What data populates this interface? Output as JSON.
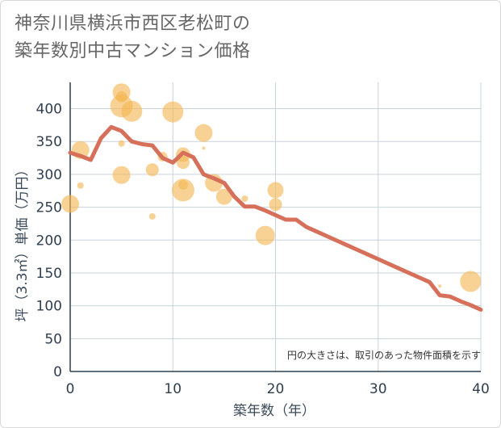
{
  "title_line1": "神奈川県横浜市西区老松町の",
  "title_line2": "築年数別中古マンション価格",
  "chart_data": {
    "type": "scatter",
    "xlabel": "築年数（年）",
    "ylabel": "坪（3.3㎡）単価（万円）",
    "note": "円の大きさは、取引のあった物件面積を示す",
    "xlim": [
      0,
      40
    ],
    "ylim": [
      0,
      440
    ],
    "x_ticks": [
      0,
      10,
      20,
      30,
      40
    ],
    "y_ticks": [
      0,
      50,
      100,
      150,
      200,
      250,
      300,
      350,
      400
    ],
    "grid": true,
    "colors": {
      "bubble": "#f3b752",
      "line": "#d6705a",
      "grid": "#c9d3dc",
      "axis": "#2f3e4f"
    },
    "points": [
      {
        "x": 0,
        "y": 255,
        "size": 11
      },
      {
        "x": 1,
        "y": 337,
        "size": 11
      },
      {
        "x": 1,
        "y": 283,
        "size": 4
      },
      {
        "x": 5,
        "y": 425,
        "size": 11
      },
      {
        "x": 5,
        "y": 418,
        "size": 7
      },
      {
        "x": 5,
        "y": 404,
        "size": 14
      },
      {
        "x": 5,
        "y": 347,
        "size": 4
      },
      {
        "x": 5,
        "y": 299,
        "size": 11
      },
      {
        "x": 6,
        "y": 396,
        "size": 13
      },
      {
        "x": 8,
        "y": 307,
        "size": 8
      },
      {
        "x": 8,
        "y": 236,
        "size": 4
      },
      {
        "x": 9,
        "y": 327,
        "size": 6
      },
      {
        "x": 10,
        "y": 395,
        "size": 13
      },
      {
        "x": 11,
        "y": 330,
        "size": 9
      },
      {
        "x": 11,
        "y": 318,
        "size": 8
      },
      {
        "x": 11,
        "y": 284,
        "size": 6
      },
      {
        "x": 11,
        "y": 276,
        "size": 14
      },
      {
        "x": 13,
        "y": 363,
        "size": 11
      },
      {
        "x": 13,
        "y": 340,
        "size": 2
      },
      {
        "x": 14,
        "y": 287,
        "size": 11
      },
      {
        "x": 15,
        "y": 266,
        "size": 10
      },
      {
        "x": 17,
        "y": 263,
        "size": 4
      },
      {
        "x": 19,
        "y": 207,
        "size": 12
      },
      {
        "x": 20,
        "y": 276,
        "size": 10
      },
      {
        "x": 20,
        "y": 254,
        "size": 8
      },
      {
        "x": 36,
        "y": 130,
        "size": 2
      },
      {
        "x": 39,
        "y": 137,
        "size": 13
      }
    ],
    "series": [
      {
        "x": [
          0,
          1,
          2,
          3,
          4,
          5,
          6,
          7,
          8,
          9,
          10,
          11,
          12,
          13,
          14,
          15,
          16,
          17,
          18,
          19,
          20,
          21,
          22,
          23,
          24,
          25,
          26,
          27,
          28,
          29,
          30,
          31,
          32,
          33,
          34,
          35,
          36,
          37,
          38,
          39,
          40
        ],
        "y": [
          333,
          328,
          322,
          355,
          372,
          366,
          350,
          346,
          344,
          325,
          318,
          333,
          326,
          300,
          294,
          287,
          266,
          251,
          251,
          245,
          238,
          231,
          231,
          220,
          213,
          206,
          199,
          192,
          185,
          178,
          171,
          164,
          157,
          150,
          143,
          136,
          116,
          114,
          107,
          101,
          94
        ]
      }
    ]
  }
}
